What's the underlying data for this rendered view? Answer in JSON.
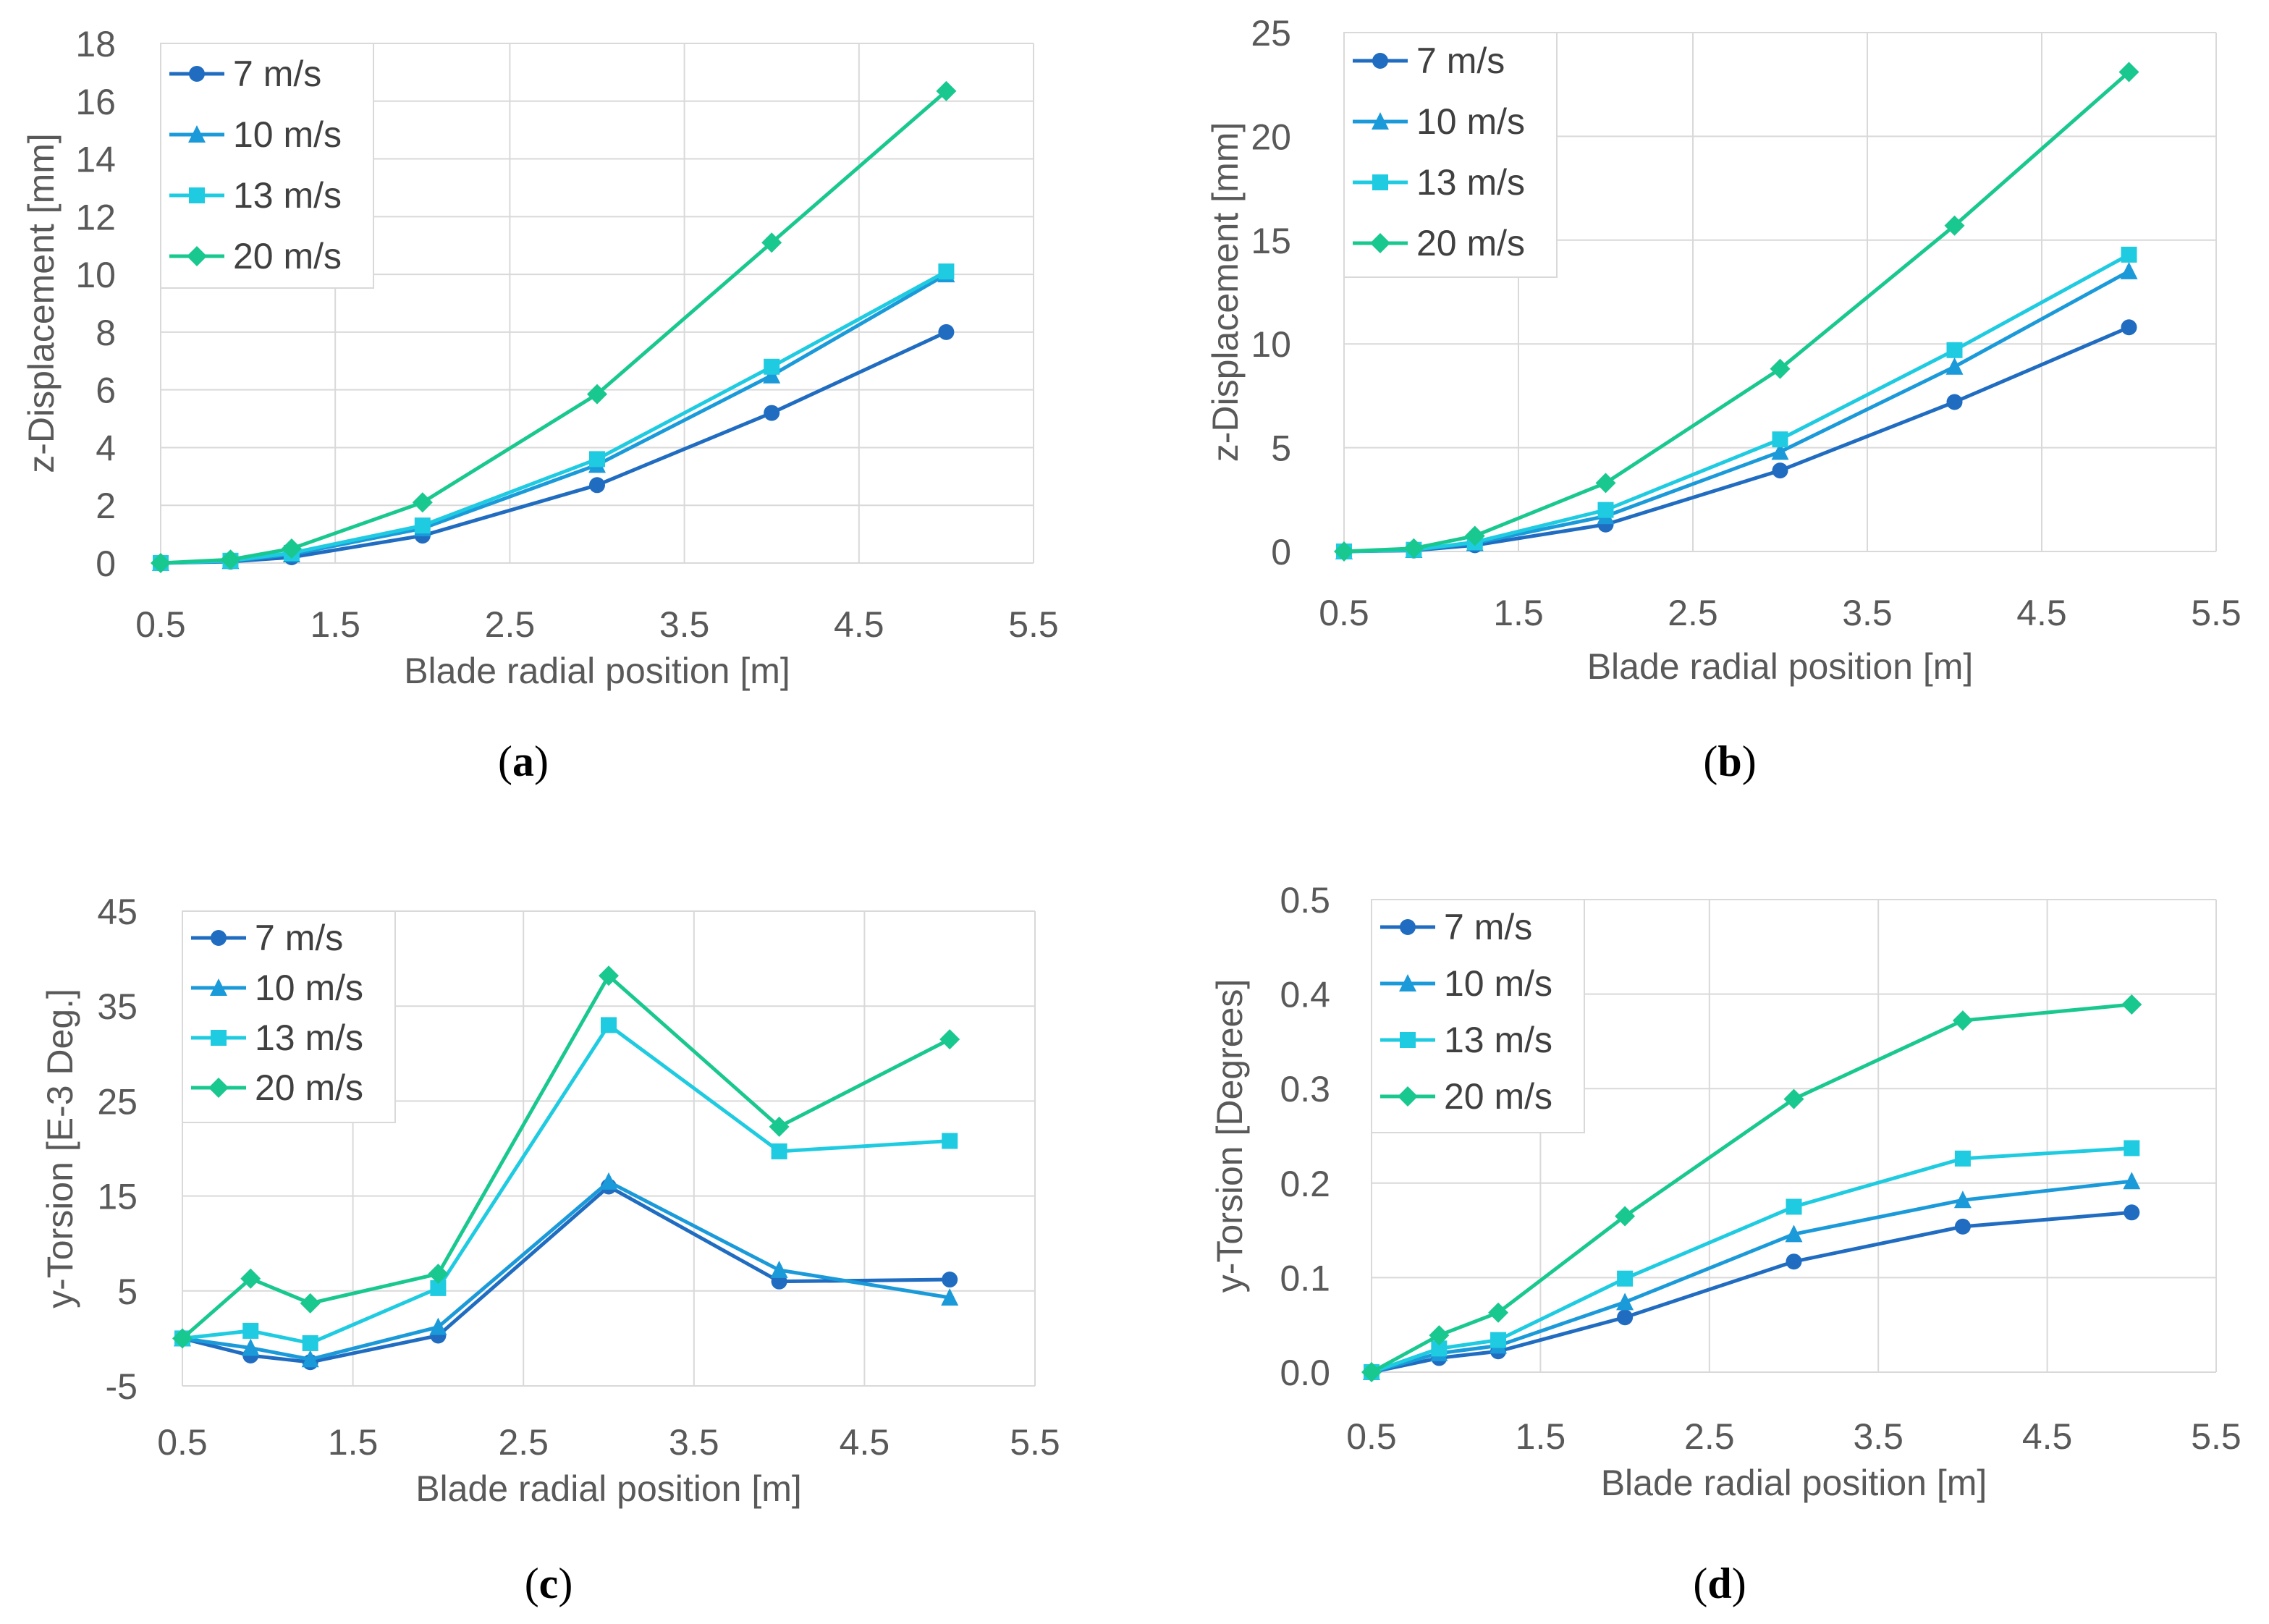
{
  "colors": {
    "7 m/s": "#1f6cc1",
    "10 m/s": "#1b9ad9",
    "13 m/s": "#1fcbe0",
    "20 m/s": "#19c88f",
    "grid": "#d9d9d9",
    "tick_text": "#595959"
  },
  "chart_data": [
    {
      "type": "line",
      "panel": "a",
      "panel_label": "a",
      "xlabel": "Blade radial position [m]",
      "ylabel": "z-Displacement [mm]",
      "xlim": [
        0.5,
        5.5
      ],
      "xticks": [
        0.5,
        1.5,
        2.5,
        3.5,
        4.5,
        5.5
      ],
      "xtick_labels": [
        "0.5",
        "1.5",
        "2.5",
        "3.5",
        "4.5",
        "5.5"
      ],
      "ylim": [
        0,
        18
      ],
      "yticks": [
        0,
        2,
        4,
        6,
        8,
        10,
        12,
        14,
        16,
        18
      ],
      "ytick_labels": [
        "0",
        "2",
        "4",
        "6",
        "8",
        "10",
        "12",
        "14",
        "16",
        "18"
      ],
      "legend_position": "top-left",
      "series": [
        {
          "name": "7 m/s",
          "marker": "circle",
          "x": [
            0.5,
            0.9,
            1.25,
            2,
            3,
            4,
            5
          ],
          "y": [
            0,
            0.05,
            0.2,
            0.95,
            2.7,
            5.2,
            8.0
          ]
        },
        {
          "name": "10 m/s",
          "marker": "triangle",
          "x": [
            0.5,
            0.9,
            1.25,
            2,
            3,
            4,
            5
          ],
          "y": [
            0,
            0.07,
            0.3,
            1.2,
            3.4,
            6.5,
            10.0
          ]
        },
        {
          "name": "13 m/s",
          "marker": "square",
          "x": [
            0.5,
            0.9,
            1.25,
            2,
            3,
            4,
            5
          ],
          "y": [
            0,
            0.08,
            0.35,
            1.3,
            3.6,
            6.8,
            10.1
          ]
        },
        {
          "name": "20 m/s",
          "marker": "diamond",
          "x": [
            0.5,
            0.9,
            1.25,
            2,
            3,
            4,
            5
          ],
          "y": [
            0,
            0.12,
            0.5,
            2.1,
            5.85,
            11.1,
            16.35
          ]
        }
      ]
    },
    {
      "type": "line",
      "panel": "b",
      "panel_label": "b",
      "xlabel": "Blade radial position [m]",
      "ylabel": "z-Displacement [mm]",
      "xlim": [
        0.5,
        5.5
      ],
      "xticks": [
        0.5,
        1.5,
        2.5,
        3.5,
        4.5,
        5.5
      ],
      "xtick_labels": [
        "0.5",
        "1.5",
        "2.5",
        "3.5",
        "4.5",
        "5.5"
      ],
      "ylim": [
        0,
        25
      ],
      "yticks": [
        0,
        5,
        10,
        15,
        20,
        25
      ],
      "ytick_labels": [
        "0",
        "5",
        "10",
        "15",
        "20",
        "25"
      ],
      "legend_position": "top-left",
      "series": [
        {
          "name": "7 m/s",
          "marker": "circle",
          "x": [
            0.5,
            0.9,
            1.25,
            2,
            3,
            4,
            5
          ],
          "y": [
            0,
            0.05,
            0.3,
            1.3,
            3.9,
            7.2,
            10.8
          ]
        },
        {
          "name": "10 m/s",
          "marker": "triangle",
          "x": [
            0.5,
            0.9,
            1.25,
            2,
            3,
            4,
            5
          ],
          "y": [
            0,
            0.07,
            0.4,
            1.7,
            4.8,
            8.9,
            13.5
          ]
        },
        {
          "name": "13 m/s",
          "marker": "square",
          "x": [
            0.5,
            0.9,
            1.25,
            2,
            3,
            4,
            5
          ],
          "y": [
            0,
            0.08,
            0.45,
            2.0,
            5.4,
            9.7,
            14.3
          ]
        },
        {
          "name": "20 m/s",
          "marker": "diamond",
          "x": [
            0.5,
            0.9,
            1.25,
            2,
            3,
            4,
            5
          ],
          "y": [
            0,
            0.15,
            0.75,
            3.3,
            8.8,
            15.7,
            23.1
          ]
        }
      ]
    },
    {
      "type": "line",
      "panel": "c",
      "panel_label": "c",
      "xlabel": "Blade radial position [m]",
      "ylabel": "y-Torsion [E-3 Deg.]",
      "xlim": [
        0.5,
        5.5
      ],
      "xticks": [
        0.5,
        1.5,
        2.5,
        3.5,
        4.5,
        5.5
      ],
      "xtick_labels": [
        "0.5",
        "1.5",
        "2.5",
        "3.5",
        "4.5",
        "5.5"
      ],
      "ylim": [
        -5,
        45
      ],
      "yticks": [
        -5,
        5,
        15,
        25,
        35,
        45
      ],
      "ytick_labels": [
        "-5",
        "5",
        "15",
        "25",
        "35",
        "45"
      ],
      "legend_position": "top-left",
      "series": [
        {
          "name": "7 m/s",
          "marker": "circle",
          "x": [
            0.5,
            0.9,
            1.25,
            2,
            3,
            4,
            5
          ],
          "y": [
            0,
            -1.8,
            -2.5,
            0.3,
            16.0,
            6.0,
            6.2
          ]
        },
        {
          "name": "10 m/s",
          "marker": "triangle",
          "x": [
            0.5,
            0.9,
            1.25,
            2,
            3,
            4,
            5
          ],
          "y": [
            0,
            -1.0,
            -2.2,
            1.2,
            16.5,
            7.2,
            4.3
          ]
        },
        {
          "name": "13 m/s",
          "marker": "square",
          "x": [
            0.5,
            0.9,
            1.25,
            2,
            3,
            4,
            5
          ],
          "y": [
            0,
            0.8,
            -0.5,
            5.3,
            33.0,
            19.7,
            20.8
          ]
        },
        {
          "name": "20 m/s",
          "marker": "diamond",
          "x": [
            0.5,
            0.9,
            1.25,
            2,
            3,
            4,
            5
          ],
          "y": [
            0,
            6.3,
            3.7,
            6.8,
            38.2,
            22.3,
            31.5
          ]
        }
      ]
    },
    {
      "type": "line",
      "panel": "d",
      "panel_label": "d",
      "xlabel": "Blade radial position [m]",
      "ylabel": "y-Torsion [Degrees]",
      "xlim": [
        0.5,
        5.5
      ],
      "xticks": [
        0.5,
        1.5,
        2.5,
        3.5,
        4.5,
        5.5
      ],
      "xtick_labels": [
        "0.5",
        "1.5",
        "2.5",
        "3.5",
        "4.5",
        "5.5"
      ],
      "ylim": [
        0,
        0.5
      ],
      "yticks": [
        0,
        0.1,
        0.2,
        0.3,
        0.4,
        0.5
      ],
      "ytick_labels": [
        "0.0",
        "0.1",
        "0.2",
        "0.3",
        "0.4",
        "0.5"
      ],
      "legend_position": "top-left",
      "series": [
        {
          "name": "7 m/s",
          "marker": "circle",
          "x": [
            0.5,
            0.9,
            1.25,
            2,
            3,
            4,
            5
          ],
          "y": [
            0,
            0.015,
            0.022,
            0.058,
            0.117,
            0.154,
            0.169
          ]
        },
        {
          "name": "10 m/s",
          "marker": "triangle",
          "x": [
            0.5,
            0.9,
            1.25,
            2,
            3,
            4,
            5
          ],
          "y": [
            0,
            0.02,
            0.028,
            0.074,
            0.146,
            0.182,
            0.202
          ]
        },
        {
          "name": "13 m/s",
          "marker": "square",
          "x": [
            0.5,
            0.9,
            1.25,
            2,
            3,
            4,
            5
          ],
          "y": [
            0,
            0.025,
            0.034,
            0.099,
            0.175,
            0.226,
            0.237
          ]
        },
        {
          "name": "20 m/s",
          "marker": "diamond",
          "x": [
            0.5,
            0.9,
            1.25,
            2,
            3,
            4,
            5
          ],
          "y": [
            0,
            0.039,
            0.063,
            0.165,
            0.289,
            0.372,
            0.389
          ]
        }
      ]
    }
  ]
}
